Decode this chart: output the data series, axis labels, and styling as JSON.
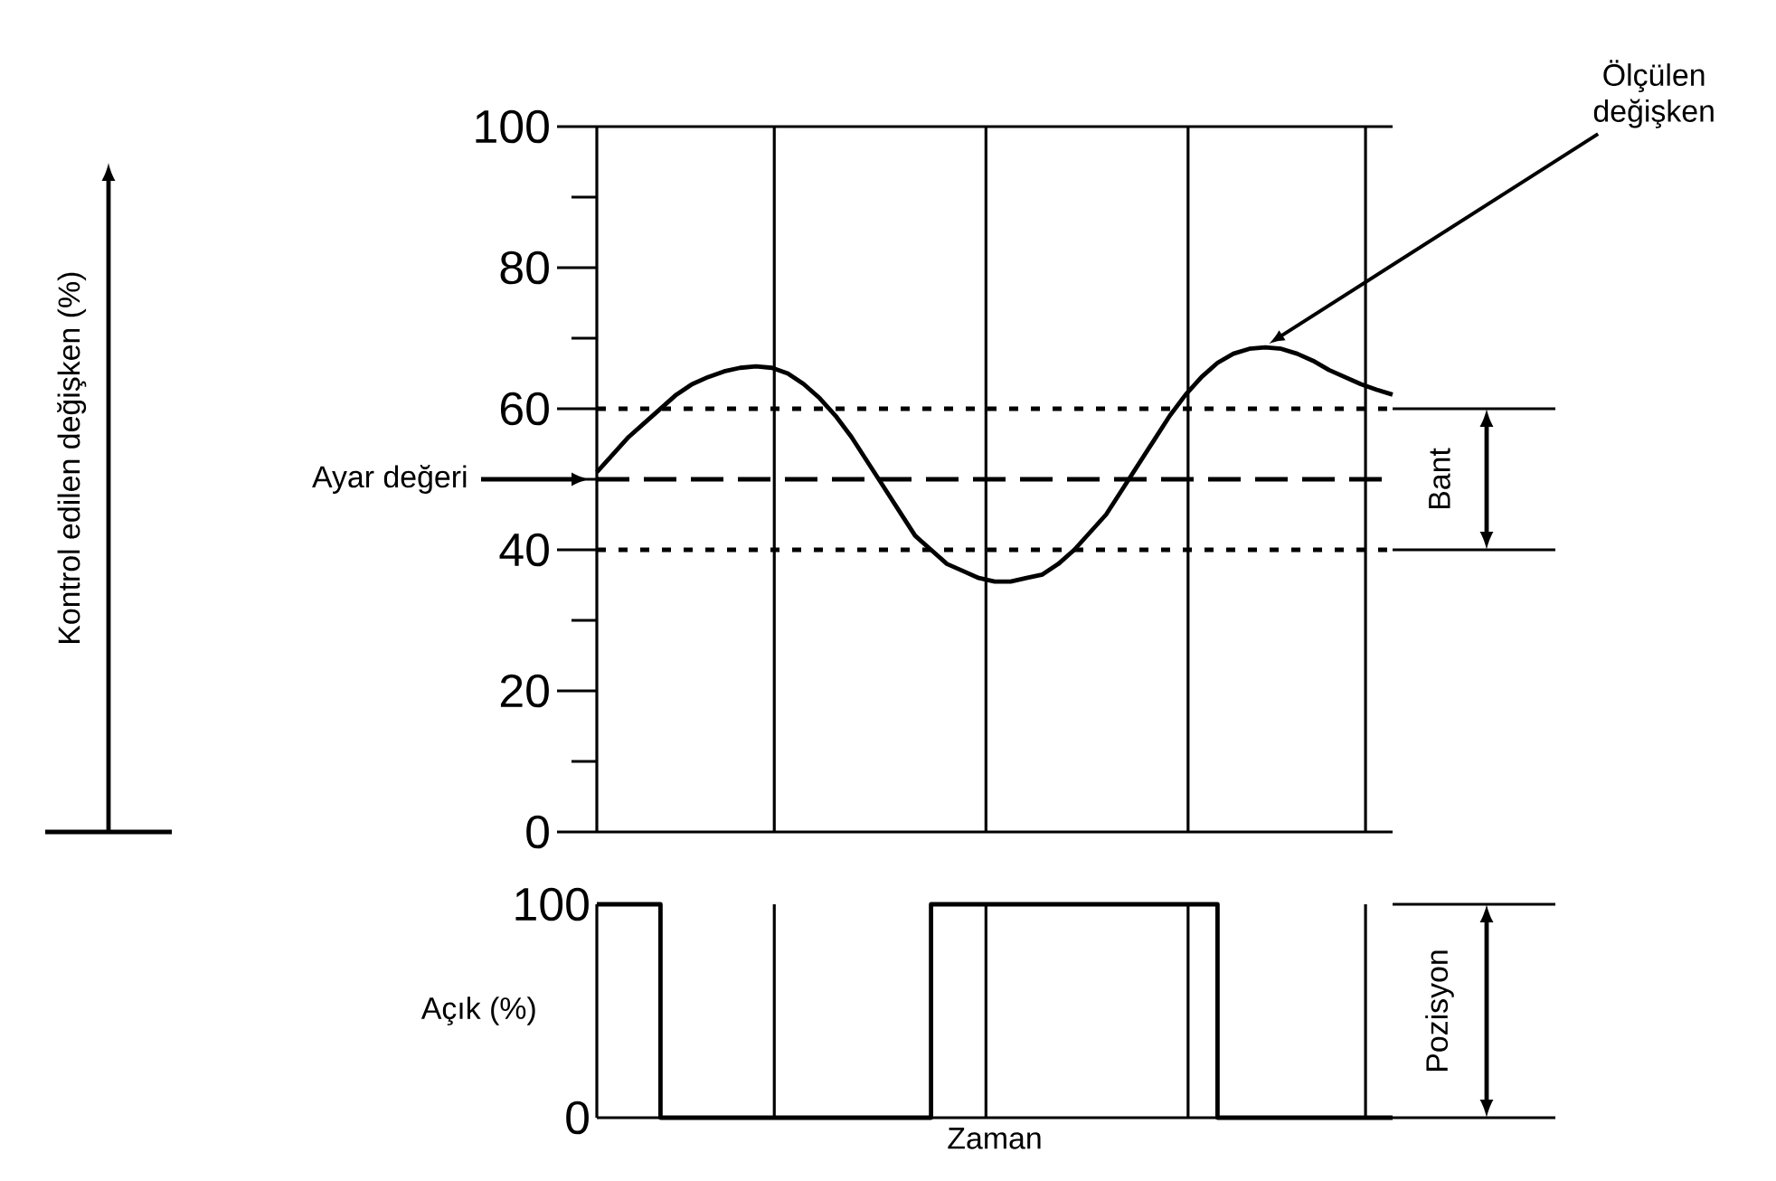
{
  "chart_data": [
    {
      "type": "line",
      "ylabel": "Kontrol edilen değişken (%)",
      "ylim": [
        0,
        100
      ],
      "tick_labels": "y",
      "categories": [
        null,
        null,
        null,
        null,
        null,
        null,
        null,
        null,
        null,
        null,
        null,
        null,
        null,
        null,
        null,
        null,
        null,
        null,
        null,
        null,
        null,
        null,
        null,
        null,
        null,
        null,
        null,
        null,
        null,
        null,
        null,
        null,
        null,
        null,
        null,
        null,
        null,
        null,
        null,
        null,
        null,
        null,
        null,
        null,
        null,
        null,
        null,
        null,
        null,
        null,
        null
      ],
      "yticks": [
        0,
        {
          "value": 10,
          "label": null
        },
        20,
        {
          "value": 30,
          "label": null
        },
        40,
        {
          "value": 50,
          "label": null
        },
        60,
        {
          "value": 70,
          "label": null
        },
        80,
        {
          "value": 90,
          "label": null
        },
        100
      ],
      "series": [
        {
          "color": "#000000",
          "values": [
            51,
            53.5,
            56,
            58,
            60,
            62,
            63.5,
            64.5,
            65.3,
            65.8,
            66,
            65.8,
            65,
            63.5,
            61.5,
            59,
            56,
            52.5,
            49,
            45.5,
            42,
            40,
            38,
            37,
            36,
            35.5,
            35.5,
            36,
            36.5,
            38,
            40,
            42.5,
            45,
            48.5,
            52,
            55.5,
            59,
            62,
            64.5,
            66.5,
            67.8,
            68.5,
            68.7,
            68.5,
            67.8,
            66.8,
            65.5,
            64.5,
            63.5,
            62.7,
            62
          ]
        }
      ],
      "ref_lines": [
        {
          "axis": "y",
          "value": 60,
          "line_style": "dotted"
        },
        {
          "axis": "y",
          "value": 50,
          "line_style": "dashed",
          "label": "Ayar değeri"
        },
        {
          "axis": "y",
          "value": 40,
          "line_style": "dotted"
        }
      ],
      "annotations": [
        "Ölçülen değişken",
        "Bant"
      ],
      "grid": "x"
    },
    {
      "type": "step",
      "ylabel": "Açık (%)",
      "xlabel": "Zaman",
      "ylim": [
        0,
        100
      ],
      "tick_labels": "y",
      "yticks": [
        0,
        100
      ],
      "categories": [
        null,
        null,
        null,
        null,
        null,
        null,
        null,
        null,
        null,
        null,
        null,
        null,
        null,
        null,
        null,
        null,
        null,
        null,
        null,
        null,
        null,
        null,
        null,
        null,
        null,
        null,
        null,
        null,
        null,
        null,
        null,
        null,
        null,
        null,
        null,
        null,
        null,
        null,
        null,
        null,
        null,
        null,
        null,
        null,
        null,
        null,
        null,
        null,
        null,
        null,
        null
      ],
      "series": [
        {
          "color": "#000000",
          "values": [
            100,
            100,
            100,
            100,
            0,
            0,
            0,
            0,
            0,
            0,
            0,
            0,
            0,
            0,
            0,
            0,
            0,
            0,
            0,
            0,
            0,
            100,
            100,
            100,
            100,
            100,
            100,
            100,
            100,
            100,
            100,
            100,
            100,
            100,
            100,
            100,
            100,
            100,
            100,
            0,
            0,
            0,
            0,
            0,
            0,
            0,
            0,
            0,
            0,
            0,
            0
          ]
        }
      ],
      "annotations": [
        "Pozisyon"
      ],
      "grid": "x"
    }
  ]
}
